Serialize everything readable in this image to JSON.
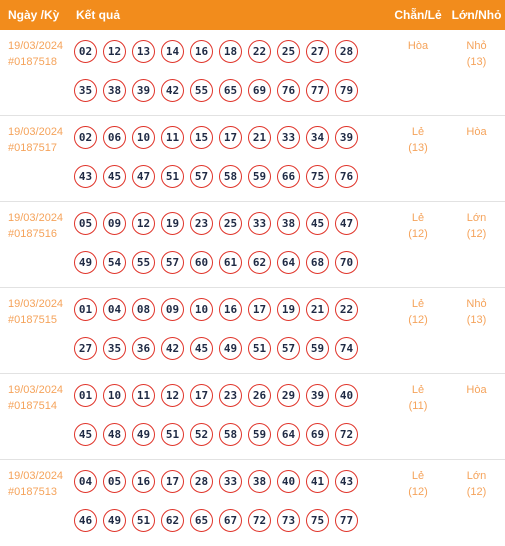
{
  "header": {
    "date_label": "Ngày /Kỳ",
    "result_label": "Kết quả",
    "even_odd_label": "Chẵn/Lẻ",
    "big_small_label": "Lớn/Nhỏ"
  },
  "rows": [
    {
      "date": "19/03/2024",
      "draw": "#0187518",
      "balls1": [
        "02",
        "12",
        "13",
        "14",
        "16",
        "18",
        "22",
        "25",
        "27",
        "28"
      ],
      "balls2": [
        "35",
        "38",
        "39",
        "42",
        "55",
        "65",
        "69",
        "76",
        "77",
        "79"
      ],
      "even_odd": "Hòa",
      "even_odd_count": "",
      "big_small": "Nhỏ",
      "big_small_count": "(13)"
    },
    {
      "date": "19/03/2024",
      "draw": "#0187517",
      "balls1": [
        "02",
        "06",
        "10",
        "11",
        "15",
        "17",
        "21",
        "33",
        "34",
        "39"
      ],
      "balls2": [
        "43",
        "45",
        "47",
        "51",
        "57",
        "58",
        "59",
        "66",
        "75",
        "76"
      ],
      "even_odd": "Lẻ",
      "even_odd_count": "(13)",
      "big_small": "Hòa",
      "big_small_count": ""
    },
    {
      "date": "19/03/2024",
      "draw": "#0187516",
      "balls1": [
        "05",
        "09",
        "12",
        "19",
        "23",
        "25",
        "33",
        "38",
        "45",
        "47"
      ],
      "balls2": [
        "49",
        "54",
        "55",
        "57",
        "60",
        "61",
        "62",
        "64",
        "68",
        "70"
      ],
      "even_odd": "Lẻ",
      "even_odd_count": "(12)",
      "big_small": "Lớn",
      "big_small_count": "(12)"
    },
    {
      "date": "19/03/2024",
      "draw": "#0187515",
      "balls1": [
        "01",
        "04",
        "08",
        "09",
        "10",
        "16",
        "17",
        "19",
        "21",
        "22"
      ],
      "balls2": [
        "27",
        "35",
        "36",
        "42",
        "45",
        "49",
        "51",
        "57",
        "59",
        "74"
      ],
      "even_odd": "Lẻ",
      "even_odd_count": "(12)",
      "big_small": "Nhỏ",
      "big_small_count": "(13)"
    },
    {
      "date": "19/03/2024",
      "draw": "#0187514",
      "balls1": [
        "01",
        "10",
        "11",
        "12",
        "17",
        "23",
        "26",
        "29",
        "39",
        "40"
      ],
      "balls2": [
        "45",
        "48",
        "49",
        "51",
        "52",
        "58",
        "59",
        "64",
        "69",
        "72"
      ],
      "even_odd": "Lẻ",
      "even_odd_count": "(11)",
      "big_small": "Hòa",
      "big_small_count": ""
    },
    {
      "date": "19/03/2024",
      "draw": "#0187513",
      "balls1": [
        "04",
        "05",
        "16",
        "17",
        "28",
        "33",
        "38",
        "40",
        "41",
        "43"
      ],
      "balls2": [
        "46",
        "49",
        "51",
        "62",
        "65",
        "67",
        "72",
        "73",
        "75",
        "77"
      ],
      "even_odd": "Lẻ",
      "even_odd_count": "(12)",
      "big_small": "Lớn",
      "big_small_count": "(12)"
    }
  ]
}
